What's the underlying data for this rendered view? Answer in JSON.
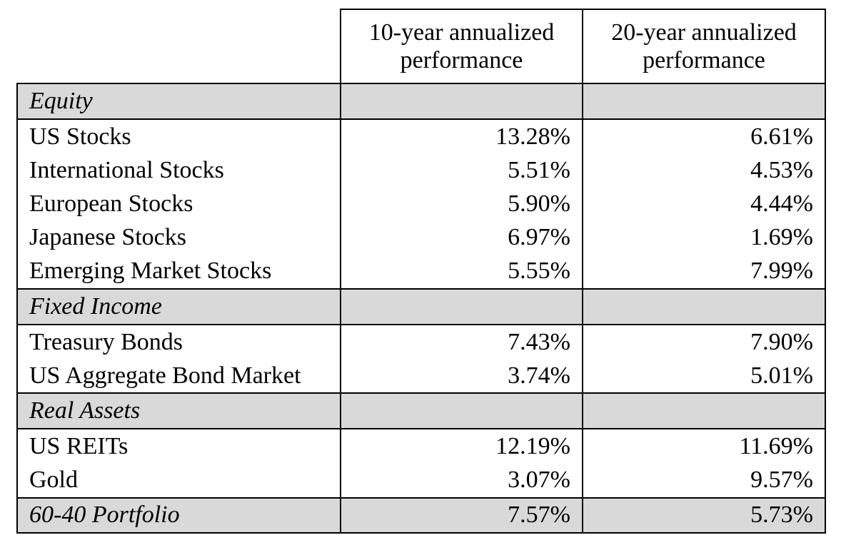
{
  "header": {
    "col1": "",
    "col2": "10-year annualized performance",
    "col3": "20-year annualized performance"
  },
  "sections": [
    {
      "title": "Equity",
      "rows": [
        {
          "name": "US Stocks",
          "ten": "13.28%",
          "twenty": "6.61%"
        },
        {
          "name": "International Stocks",
          "ten": "5.51%",
          "twenty": "4.53%"
        },
        {
          "name": "European Stocks",
          "ten": "5.90%",
          "twenty": "4.44%"
        },
        {
          "name": "Japanese Stocks",
          "ten": "6.97%",
          "twenty": "1.69%"
        },
        {
          "name": "Emerging Market Stocks",
          "ten": "5.55%",
          "twenty": "7.99%"
        }
      ]
    },
    {
      "title": "Fixed Income",
      "rows": [
        {
          "name": "Treasury Bonds",
          "ten": "7.43%",
          "twenty": "7.90%"
        },
        {
          "name": "US Aggregate Bond Market",
          "ten": "3.74%",
          "twenty": "5.01%"
        }
      ]
    },
    {
      "title": "Real Assets",
      "rows": [
        {
          "name": "US REITs",
          "ten": "12.19%",
          "twenty": "11.69%"
        },
        {
          "name": "Gold",
          "ten": "3.07%",
          "twenty": "9.57%"
        }
      ]
    }
  ],
  "total": {
    "name": "60-40 Portfolio",
    "ten": "7.57%",
    "twenty": "5.73%"
  }
}
